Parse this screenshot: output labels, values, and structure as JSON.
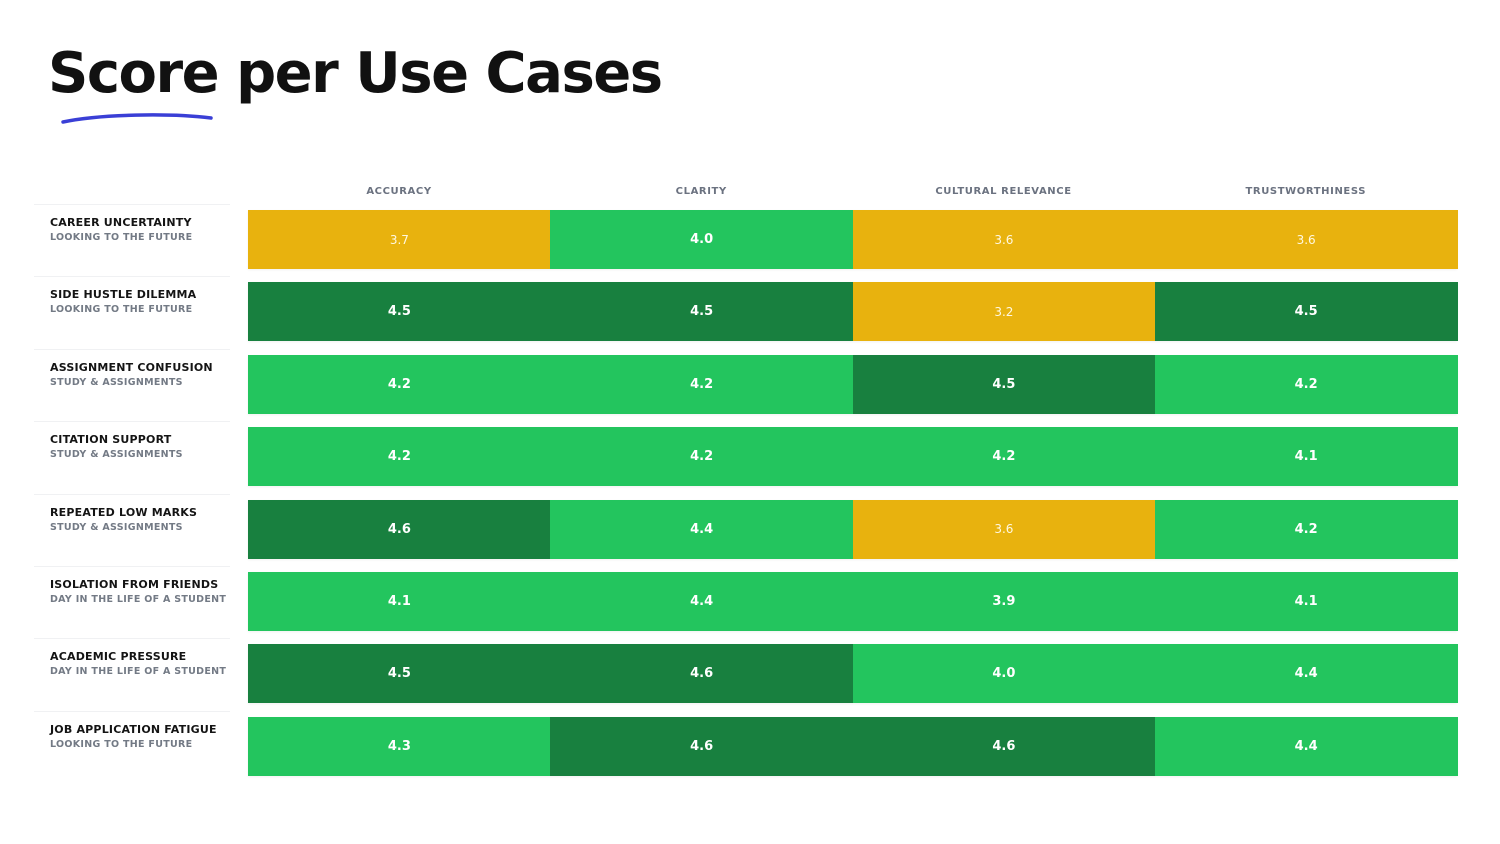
{
  "title": "Score per Use Cases",
  "chart_data": {
    "type": "heatmap",
    "title": "Score per Use Cases",
    "columns": [
      "ACCURACY",
      "CLARITY",
      "CULTURAL RELEVANCE",
      "TRUSTWORTHINESS"
    ],
    "rows": [
      {
        "name": "CAREER UNCERTAINTY",
        "category": "LOOKING TO THE FUTURE",
        "values": [
          3.7,
          4.0,
          3.6,
          3.6
        ],
        "labels": [
          "3.7",
          "4.0",
          "3.6",
          "3.6"
        ]
      },
      {
        "name": "SIDE HUSTLE DILEMMA",
        "category": "LOOKING TO THE FUTURE",
        "values": [
          4.5,
          4.5,
          3.2,
          4.5
        ],
        "labels": [
          "4.5",
          "4.5",
          "3.2",
          "4.5"
        ]
      },
      {
        "name": "ASSIGNMENT CONFUSION",
        "category": "STUDY & ASSIGNMENTS",
        "values": [
          4.2,
          4.2,
          4.5,
          4.2
        ],
        "labels": [
          "4.2",
          "4.2",
          "4.5",
          "4.2"
        ]
      },
      {
        "name": "CITATION SUPPORT",
        "category": "STUDY & ASSIGNMENTS",
        "values": [
          4.2,
          4.2,
          4.2,
          4.1
        ],
        "labels": [
          "4.2",
          "4.2",
          "4.2",
          "4.1"
        ]
      },
      {
        "name": "REPEATED LOW MARKS",
        "category": "STUDY & ASSIGNMENTS",
        "values": [
          4.6,
          4.4,
          3.6,
          4.2
        ],
        "labels": [
          "4.6",
          "4.4",
          "3.6",
          "4.2"
        ]
      },
      {
        "name": "ISOLATION FROM FRIENDS",
        "category": "DAY IN THE LIFE OF A STUDENT",
        "values": [
          4.1,
          4.4,
          3.9,
          4.1
        ],
        "labels": [
          "4.1",
          "4.4",
          "3.9",
          "4.1"
        ]
      },
      {
        "name": "ACADEMIC PRESSURE",
        "category": "DAY IN THE LIFE OF A STUDENT",
        "values": [
          4.5,
          4.6,
          4.0,
          4.4
        ],
        "labels": [
          "4.5",
          "4.6",
          "4.0",
          "4.4"
        ]
      },
      {
        "name": "JOB APPLICATION FATIGUE",
        "category": "LOOKING TO THE FUTURE",
        "values": [
          4.3,
          4.6,
          4.6,
          4.4
        ],
        "labels": [
          "4.3",
          "4.6",
          "4.6",
          "4.4"
        ]
      }
    ],
    "color_scale": [
      {
        "level": "low",
        "color": "#e8b20e"
      },
      {
        "level": "mid",
        "color": "#23c55e"
      },
      {
        "level": "high",
        "color": "#18803f"
      }
    ]
  },
  "colors": {
    "title": "#111111",
    "underline": "#3a3fd6",
    "header_text": "#6b7280",
    "row_name": "#141414",
    "row_sub": "#737a85"
  }
}
